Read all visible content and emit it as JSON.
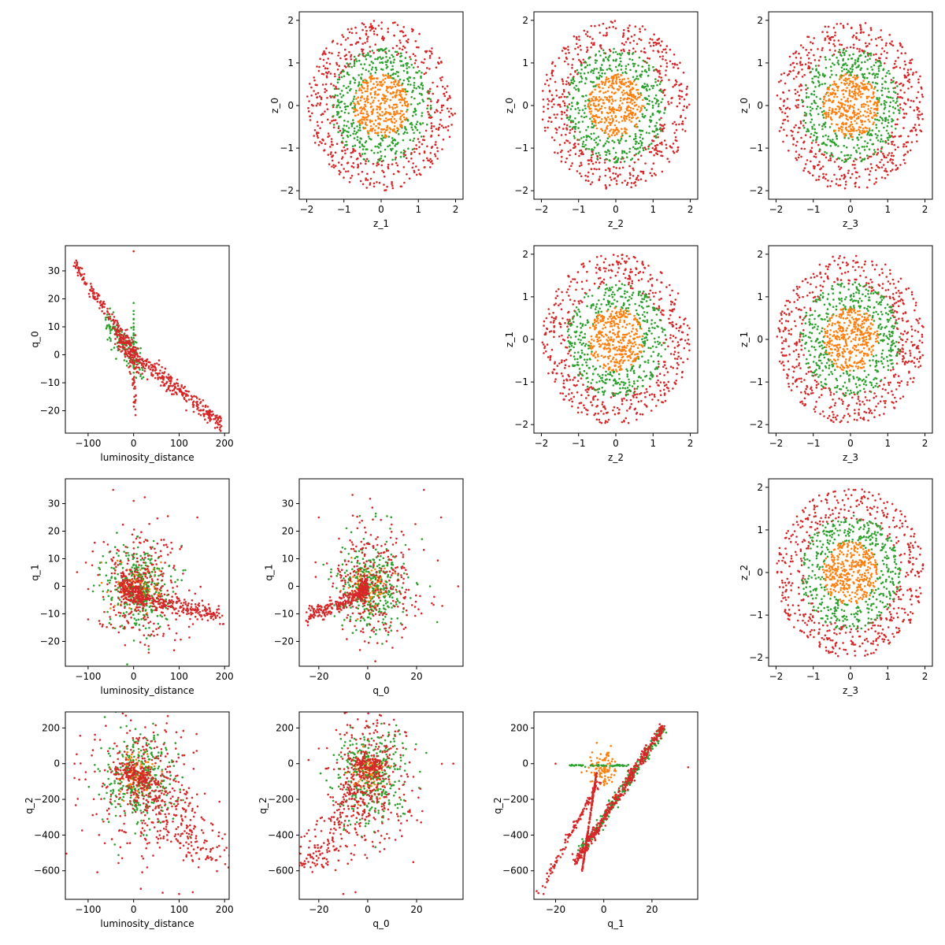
{
  "colors": {
    "red": "#d62728",
    "green": "#2ca02c",
    "orange": "#ff7f0e"
  },
  "chart_data": [
    {
      "id": "z0_z1",
      "type": "scatter",
      "xlabel": "z_1",
      "ylabel": "z_0",
      "xlim": [
        -2.2,
        2.2
      ],
      "ylim": [
        -2.2,
        2.2
      ],
      "xticks": [
        -2,
        -1,
        0,
        1,
        2
      ],
      "yticks": [
        -2,
        -1,
        0,
        1,
        2
      ],
      "series": [
        {
          "color": "red",
          "pattern": "annulus",
          "params": [
            1.25,
            2.0
          ],
          "n": 520
        },
        {
          "color": "green",
          "pattern": "annulus",
          "params": [
            0.7,
            1.35
          ],
          "n": 420
        },
        {
          "color": "orange",
          "pattern": "disk",
          "params": [
            0,
            0.75
          ],
          "n": 360
        }
      ]
    },
    {
      "id": "z0_z2",
      "type": "scatter",
      "xlabel": "z_2",
      "ylabel": "z_0",
      "xlim": [
        -2.2,
        2.2
      ],
      "ylim": [
        -2.2,
        2.2
      ],
      "xticks": [
        -2,
        -1,
        0,
        1,
        2
      ],
      "yticks": [
        -2,
        -1,
        0,
        1,
        2
      ],
      "series": [
        {
          "color": "red",
          "pattern": "annulus",
          "params": [
            1.25,
            2.0
          ],
          "n": 520
        },
        {
          "color": "green",
          "pattern": "annulus",
          "params": [
            0.7,
            1.35
          ],
          "n": 420
        },
        {
          "color": "orange",
          "pattern": "disk",
          "params": [
            0,
            0.75
          ],
          "n": 360
        }
      ]
    },
    {
      "id": "z0_z3",
      "type": "scatter",
      "xlabel": "z_3",
      "ylabel": "z_0",
      "xlim": [
        -2.2,
        2.2
      ],
      "ylim": [
        -2.2,
        2.2
      ],
      "xticks": [
        -2,
        -1,
        0,
        1,
        2
      ],
      "yticks": [
        -2,
        -1,
        0,
        1,
        2
      ],
      "series": [
        {
          "color": "red",
          "pattern": "annulus",
          "params": [
            1.25,
            2.0
          ],
          "n": 520
        },
        {
          "color": "green",
          "pattern": "annulus",
          "params": [
            0.7,
            1.35
          ],
          "n": 420
        },
        {
          "color": "orange",
          "pattern": "disk",
          "params": [
            0,
            0.75
          ],
          "n": 360
        }
      ]
    },
    {
      "id": "z1_z2",
      "type": "scatter",
      "xlabel": "z_2",
      "ylabel": "z_1",
      "xlim": [
        -2.2,
        2.2
      ],
      "ylim": [
        -2.2,
        2.2
      ],
      "xticks": [
        -2,
        -1,
        0,
        1,
        2
      ],
      "yticks": [
        -2,
        -1,
        0,
        1,
        2
      ],
      "series": [
        {
          "color": "red",
          "pattern": "annulus",
          "params": [
            1.25,
            2.0
          ],
          "n": 520
        },
        {
          "color": "green",
          "pattern": "annulus",
          "params": [
            0.7,
            1.35
          ],
          "n": 420
        },
        {
          "color": "orange",
          "pattern": "disk",
          "params": [
            0,
            0.75
          ],
          "n": 360
        }
      ]
    },
    {
      "id": "z1_z3",
      "type": "scatter",
      "xlabel": "z_3",
      "ylabel": "z_1",
      "xlim": [
        -2.2,
        2.2
      ],
      "ylim": [
        -2.2,
        2.2
      ],
      "xticks": [
        -2,
        -1,
        0,
        1,
        2
      ],
      "yticks": [
        -2,
        -1,
        0,
        1,
        2
      ],
      "series": [
        {
          "color": "red",
          "pattern": "annulus",
          "params": [
            1.25,
            2.0
          ],
          "n": 520
        },
        {
          "color": "green",
          "pattern": "annulus",
          "params": [
            0.7,
            1.35
          ],
          "n": 420
        },
        {
          "color": "orange",
          "pattern": "disk",
          "params": [
            0,
            0.75
          ],
          "n": 360
        }
      ]
    },
    {
      "id": "z2_z3",
      "type": "scatter",
      "xlabel": "z_3",
      "ylabel": "z_2",
      "xlim": [
        -2.2,
        2.2
      ],
      "ylim": [
        -2.2,
        2.2
      ],
      "xticks": [
        -2,
        -1,
        0,
        1,
        2
      ],
      "yticks": [
        -2,
        -1,
        0,
        1,
        2
      ],
      "series": [
        {
          "color": "red",
          "pattern": "annulus",
          "params": [
            1.25,
            2.0
          ],
          "n": 520
        },
        {
          "color": "green",
          "pattern": "annulus",
          "params": [
            0.7,
            1.35
          ],
          "n": 420
        },
        {
          "color": "orange",
          "pattern": "disk",
          "params": [
            0,
            0.75
          ],
          "n": 360
        }
      ]
    },
    {
      "id": "q0_ld",
      "type": "scatter",
      "xlabel": "luminosity_distance",
      "ylabel": "q_0",
      "xlim": [
        -150,
        210
      ],
      "ylim": [
        -28,
        39
      ],
      "xticks": [
        -100,
        0,
        100,
        200
      ],
      "yticks": [
        -20,
        -10,
        0,
        10,
        20,
        30
      ],
      "series": [
        {
          "color": "green",
          "pattern": "segments",
          "segments": [
            [
              -60,
              12,
              20,
              -4,
              120,
              3
            ],
            [
              0,
              -8,
              0,
              18,
              30,
              3
            ]
          ]
        },
        {
          "color": "red",
          "pattern": "segments",
          "segments": [
            [
              -130,
              32,
              0,
              2,
              140,
              1.5
            ],
            [
              0,
              0,
              195,
              -25,
              280,
              1.5
            ],
            [
              -40,
              8,
              10,
              -3,
              120,
              3
            ],
            [
              -10,
              3,
              5,
              -17,
              30,
              4
            ]
          ]
        },
        {
          "color": "red",
          "pattern": "points",
          "points": [
            [
              0,
              37
            ],
            [
              0,
              -17
            ],
            [
              60,
              -11
            ]
          ]
        }
      ]
    },
    {
      "id": "q1_ld",
      "type": "scatter",
      "xlabel": "luminosity_distance",
      "ylabel": "q_1",
      "xlim": [
        -150,
        210
      ],
      "ylim": [
        -29,
        39
      ],
      "xticks": [
        -100,
        0,
        100,
        200
      ],
      "yticks": [
        -20,
        -10,
        0,
        10,
        20,
        30
      ],
      "series": [
        {
          "color": "orange",
          "pattern": "blob",
          "params": [
            10,
            0,
            25,
            4
          ],
          "n": 120
        },
        {
          "color": "green",
          "pattern": "blob",
          "params": [
            10,
            0,
            35,
            8
          ],
          "n": 330
        },
        {
          "color": "red",
          "pattern": "blob",
          "params": [
            15,
            0,
            50,
            11
          ],
          "n": 300
        },
        {
          "color": "red",
          "pattern": "segments",
          "segments": [
            [
              0,
              -3,
              195,
              -11,
              220,
              1.5
            ],
            [
              -30,
              0,
              20,
              -3,
              150,
              2.5
            ]
          ]
        },
        {
          "color": "red",
          "pattern": "points",
          "points": [
            [
              -45,
              35
            ],
            [
              0,
              31
            ],
            [
              140,
              25
            ],
            [
              -100,
              -12
            ]
          ]
        }
      ]
    },
    {
      "id": "q1_q0",
      "type": "scatter",
      "xlabel": "q_0",
      "ylabel": "q_1",
      "xlim": [
        -28,
        39
      ],
      "ylim": [
        -29,
        39
      ],
      "xticks": [
        -20,
        0,
        20
      ],
      "yticks": [
        -20,
        -10,
        0,
        10,
        20,
        30
      ],
      "series": [
        {
          "color": "orange",
          "pattern": "blob",
          "params": [
            0,
            0,
            4,
            4
          ],
          "n": 120
        },
        {
          "color": "green",
          "pattern": "blob",
          "params": [
            2,
            0,
            7,
            8
          ],
          "n": 330
        },
        {
          "color": "red",
          "pattern": "blob",
          "params": [
            2,
            2,
            9,
            11
          ],
          "n": 280
        },
        {
          "color": "red",
          "pattern": "segments",
          "segments": [
            [
              -25,
              -11,
              0,
              -2,
              220,
              1.5
            ],
            [
              -3,
              0,
              0,
              0,
              80,
              2
            ]
          ]
        },
        {
          "color": "red",
          "pattern": "points",
          "points": [
            [
              23,
              35
            ],
            [
              30,
              25
            ],
            [
              37,
              0
            ],
            [
              -20,
              25
            ]
          ]
        }
      ]
    },
    {
      "id": "q2_ld",
      "type": "scatter",
      "xlabel": "luminosity_distance",
      "ylabel": "q_2",
      "xlim": [
        -150,
        210
      ],
      "ylim": [
        -760,
        290
      ],
      "xticks": [
        -100,
        0,
        100,
        200
      ],
      "yticks": [
        -600,
        -400,
        -200,
        0,
        200
      ],
      "series": [
        {
          "color": "orange",
          "pattern": "blob",
          "params": [
            10,
            -60,
            20,
            60
          ],
          "n": 120
        },
        {
          "color": "green",
          "pattern": "blob",
          "params": [
            15,
            -80,
            40,
            140
          ],
          "n": 320
        },
        {
          "color": "red",
          "pattern": "blob",
          "params": [
            25,
            -120,
            60,
            220
          ],
          "n": 330
        },
        {
          "color": "red",
          "pattern": "segments",
          "segments": [
            [
              0,
              -50,
              195,
              -590,
              220,
              25
            ],
            [
              -30,
              -20,
              30,
              -100,
              120,
              25
            ]
          ]
        },
        {
          "color": "red",
          "pattern": "points",
          "points": [
            [
              100,
              -730
            ],
            [
              130,
              -720
            ],
            [
              -130,
              0
            ],
            [
              -130,
              -80
            ]
          ]
        }
      ]
    },
    {
      "id": "q2_q0",
      "type": "scatter",
      "xlabel": "q_0",
      "ylabel": "q_2",
      "xlim": [
        -28,
        39
      ],
      "ylim": [
        -760,
        290
      ],
      "xticks": [
        -20,
        0,
        20
      ],
      "yticks": [
        -600,
        -400,
        -200,
        0,
        200
      ],
      "series": [
        {
          "color": "orange",
          "pattern": "blob",
          "params": [
            0,
            -40,
            3,
            60
          ],
          "n": 120
        },
        {
          "color": "green",
          "pattern": "blob",
          "params": [
            2,
            -60,
            7,
            140
          ],
          "n": 320
        },
        {
          "color": "red",
          "pattern": "blob",
          "params": [
            1,
            -80,
            9,
            210
          ],
          "n": 320
        },
        {
          "color": "red",
          "pattern": "segments",
          "segments": [
            [
              -25,
              -600,
              0,
              -40,
              220,
              25
            ],
            [
              -5,
              0,
              5,
              0,
              100,
              25
            ]
          ]
        },
        {
          "color": "red",
          "pattern": "points",
          "points": [
            [
              35,
              0
            ],
            [
              -10,
              -730
            ],
            [
              -5,
              -720
            ]
          ]
        }
      ]
    },
    {
      "id": "q2_q1",
      "type": "scatter",
      "xlabel": "q_1",
      "ylabel": "q_2",
      "xlim": [
        -29,
        39
      ],
      "ylim": [
        -760,
        290
      ],
      "xticks": [
        -20,
        0,
        20
      ],
      "yticks": [
        -600,
        -400,
        -200,
        0,
        200
      ],
      "series": [
        {
          "color": "orange",
          "pattern": "blob",
          "params": [
            0,
            -30,
            3,
            50
          ],
          "n": 100
        },
        {
          "color": "green",
          "pattern": "segments",
          "segments": [
            [
              -10,
              -500,
              25,
              200,
              260,
              3.5
            ],
            [
              -15,
              -10,
              10,
              -10,
              60,
              2
            ]
          ]
        },
        {
          "color": "red",
          "pattern": "segments",
          "segments": [
            [
              -12,
              -560,
              25,
              220,
              380,
              3
            ],
            [
              -9,
              -600,
              -3,
              -50,
              180,
              1.5
            ],
            [
              -27,
              -730,
              -2,
              -100,
              120,
              3
            ]
          ]
        },
        {
          "color": "red",
          "pattern": "points",
          "points": [
            [
              35,
              -20
            ],
            [
              -20,
              0
            ],
            [
              -25,
              -730
            ]
          ]
        }
      ]
    }
  ]
}
